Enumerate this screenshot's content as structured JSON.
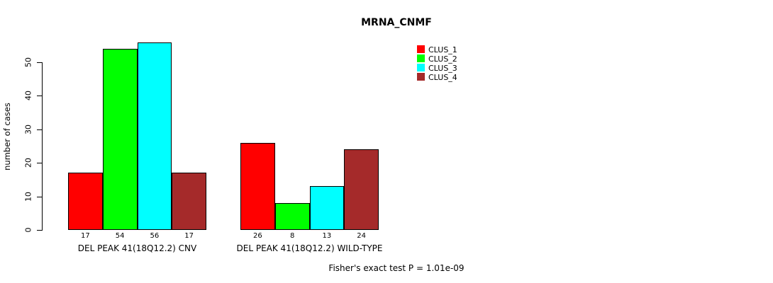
{
  "title": "MRNA_CNMF",
  "footer": "Fisher's exact test P = 1.01e-09",
  "y_axis": {
    "label": "number of cases",
    "ticks": [
      0,
      10,
      20,
      30,
      40,
      50
    ]
  },
  "legend": {
    "position": "top-right",
    "entries": [
      "CLUS_1",
      "CLUS_2",
      "CLUS_3",
      "CLUS_4"
    ]
  },
  "chart_data": {
    "type": "bar",
    "title": "MRNA_CNMF",
    "xlabel": "",
    "ylabel": "number of cases",
    "ylim": [
      0,
      56
    ],
    "grid": false,
    "legend_position": "top-right",
    "categories": [
      "DEL PEAK 41(18Q12.2) CNV",
      "DEL PEAK 41(18Q12.2) WILD-TYPE"
    ],
    "series": [
      {
        "name": "CLUS_1",
        "color": "#FF0000",
        "values": [
          17,
          26
        ]
      },
      {
        "name": "CLUS_2",
        "color": "#00FF00",
        "values": [
          54,
          8
        ]
      },
      {
        "name": "CLUS_3",
        "color": "#00FFFF",
        "values": [
          56,
          13
        ]
      },
      {
        "name": "CLUS_4",
        "color": "#A52A2A",
        "values": [
          17,
          24
        ]
      }
    ],
    "bar_value_labels": [
      [
        17,
        54,
        56,
        17
      ],
      [
        26,
        8,
        13,
        24
      ]
    ],
    "annotation": "Fisher's exact test P = 1.01e-09"
  }
}
